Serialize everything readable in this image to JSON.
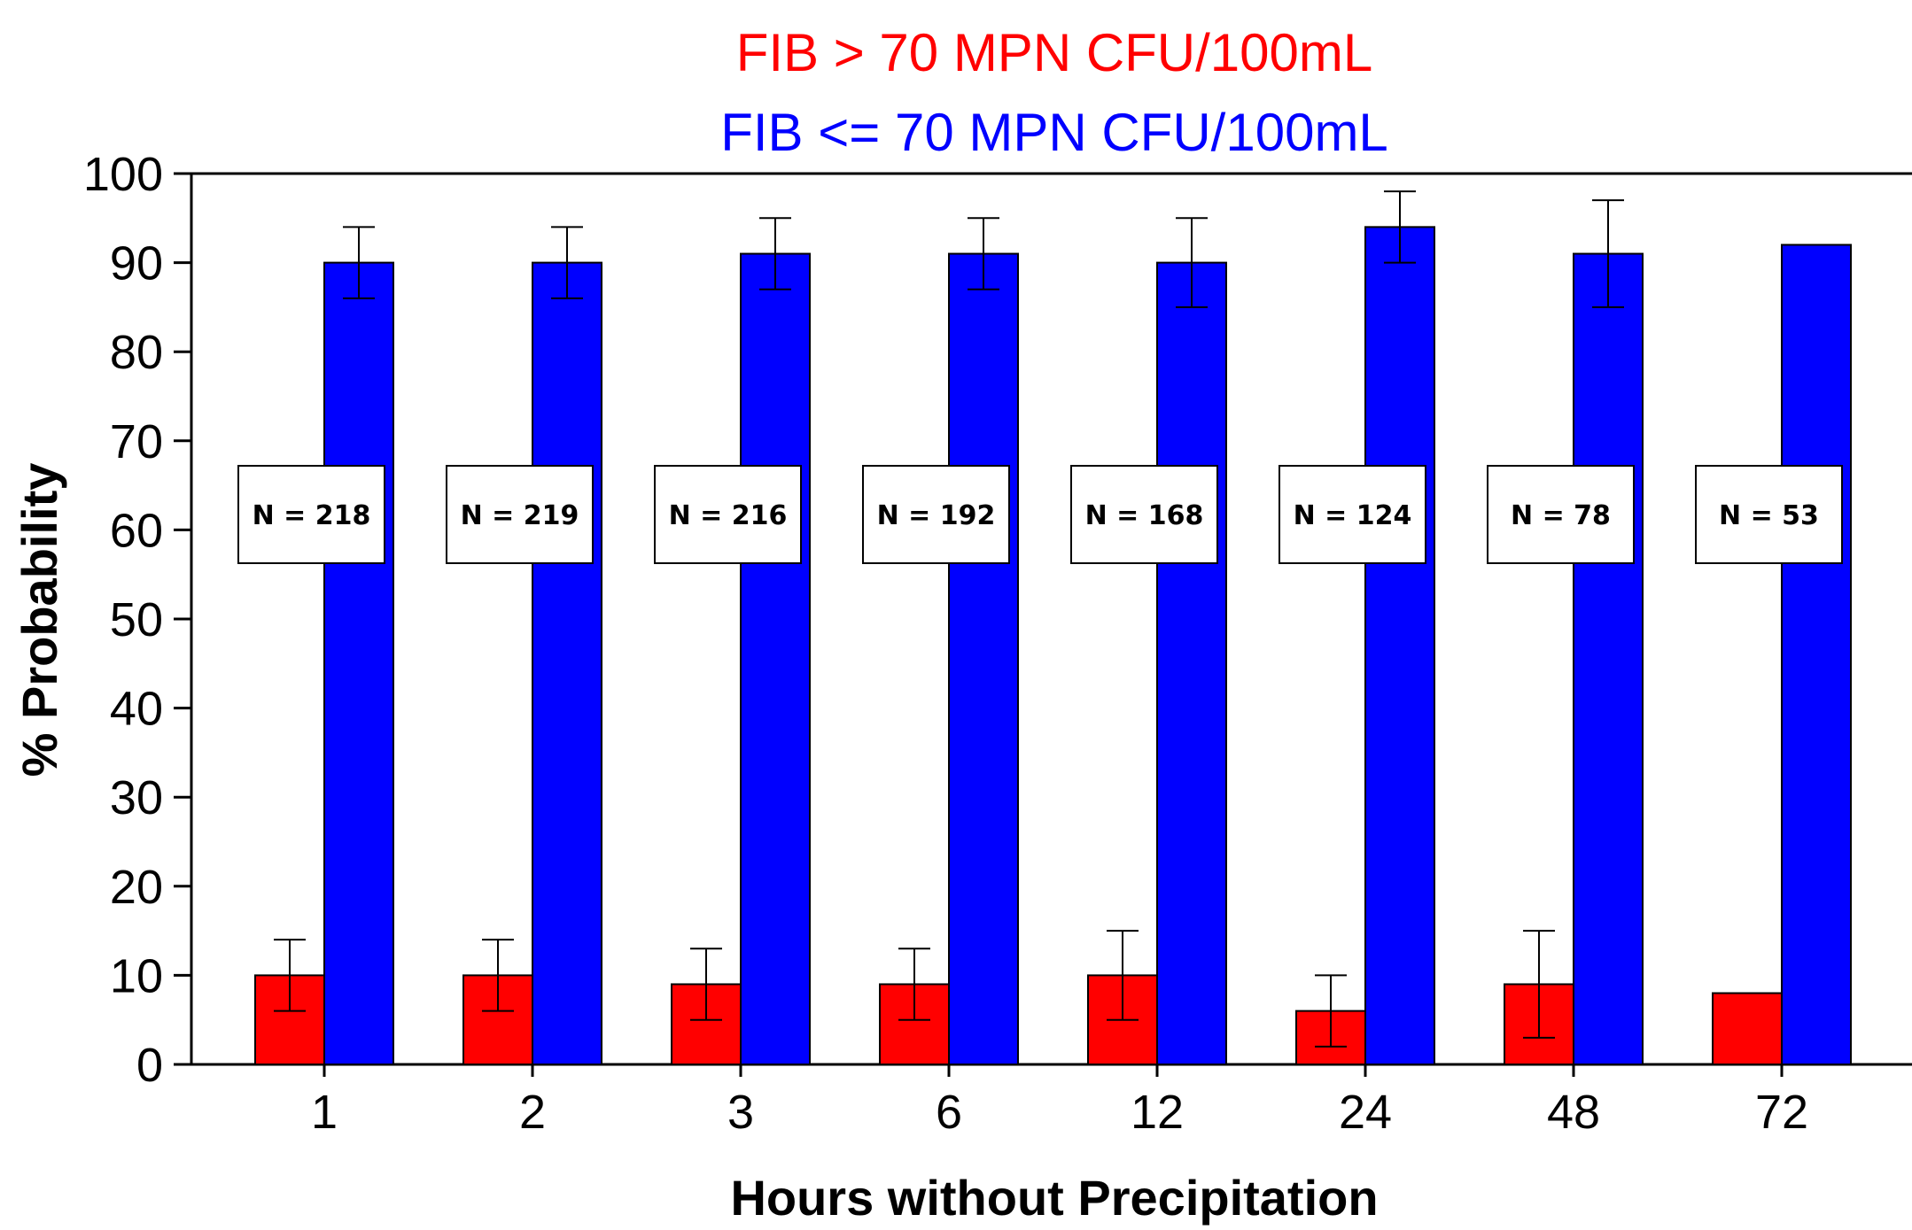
{
  "chart_data": {
    "type": "bar",
    "title_lines": [
      {
        "text": "FIB > 70 MPN CFU/100mL",
        "color": "#ff0000"
      },
      {
        "text": "FIB <= 70 MPN CFU/100mL",
        "color": "#0000ff"
      }
    ],
    "xlabel": "Hours without Precipitation",
    "ylabel": "% Probability",
    "ylim": [
      0,
      100
    ],
    "yticks": [
      0,
      10,
      20,
      30,
      40,
      50,
      60,
      70,
      80,
      90,
      100
    ],
    "categories": [
      "1",
      "2",
      "3",
      "6",
      "12",
      "24",
      "48",
      "72"
    ],
    "series": [
      {
        "color": "#ff0000",
        "values": [
          10,
          10,
          9,
          9,
          10,
          6,
          9,
          8
        ],
        "error_low": [
          6,
          6,
          5,
          5,
          5,
          2,
          3,
          null
        ],
        "error_high": [
          14,
          14,
          13,
          13,
          15,
          10,
          15,
          null
        ]
      },
      {
        "color": "#0000ff",
        "values": [
          90,
          90,
          91,
          91,
          90,
          94,
          91,
          92
        ],
        "error_low": [
          86,
          86,
          87,
          87,
          85,
          90,
          85,
          null
        ],
        "error_high": [
          94,
          94,
          95,
          95,
          95,
          98,
          97,
          null
        ]
      }
    ],
    "annotations": [
      "N = 218",
      "N  = 219",
      "N = 216",
      "N = 192",
      "N = 168",
      "N = 124",
      "N = 78",
      "N = 53"
    ],
    "grid": false,
    "legend": "none"
  }
}
